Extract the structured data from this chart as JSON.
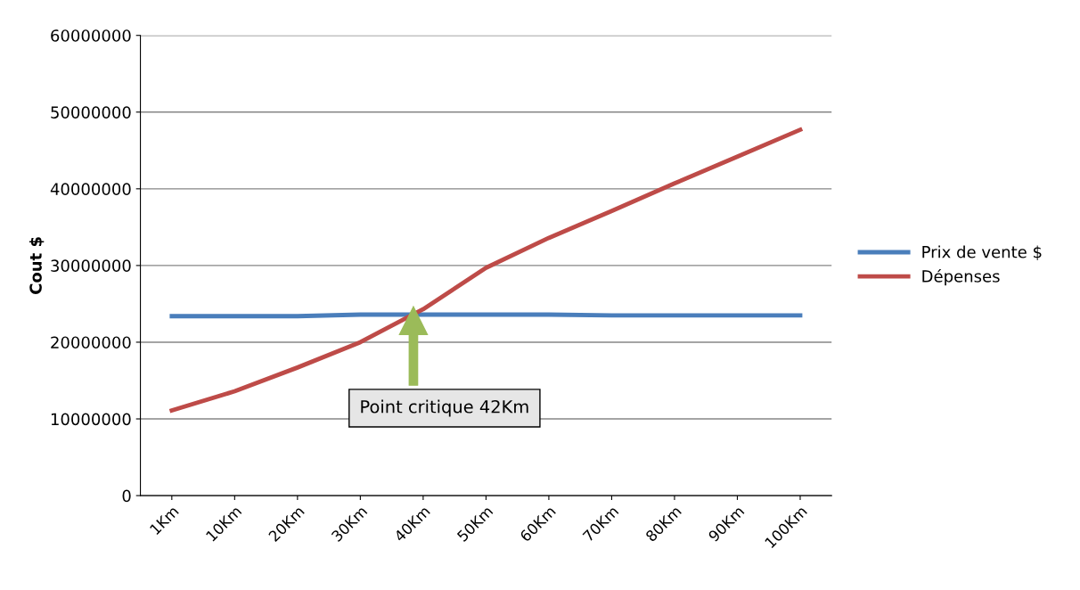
{
  "chart_data": {
    "type": "line",
    "ylabel": "Cout $",
    "categories": [
      "1Km",
      "10Km",
      "20Km",
      "30Km",
      "40Km",
      "50Km",
      "60Km",
      "70Km",
      "80Km",
      "90Km",
      "100Km"
    ],
    "series": [
      {
        "name": "Prix de vente $",
        "color": "#4a7ebb",
        "values": [
          23400000,
          23400000,
          23400000,
          23600000,
          23600000,
          23600000,
          23600000,
          23500000,
          23500000,
          23500000,
          23500000
        ]
      },
      {
        "name": "Dépenses",
        "color": "#be4b48",
        "values": [
          11100000,
          13600000,
          16700000,
          20000000,
          24300000,
          29700000,
          33600000,
          37100000,
          40700000,
          44200000,
          47700000
        ]
      }
    ],
    "ylim": [
      0,
      60000000
    ],
    "yticks": [
      0,
      10000000,
      20000000,
      30000000,
      40000000,
      50000000,
      60000000
    ],
    "grid": "y",
    "legend": "right",
    "marker": "none",
    "line_style": "solid",
    "annotations": [
      "Point critique 42Km"
    ]
  }
}
